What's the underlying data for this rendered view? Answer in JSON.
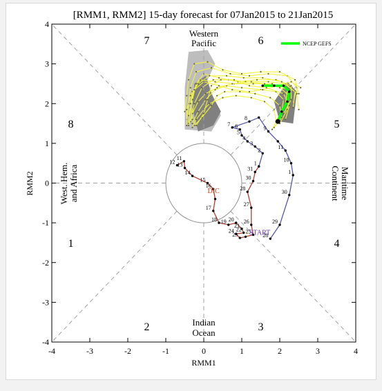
{
  "chart_data": {
    "type": "line",
    "title": "[RMM1, RMM2] 15-day forecast for 07Jan2015 to 21Jan2015",
    "xlabel": "RMM1",
    "ylabel": "RMM2",
    "xlim": [
      -4,
      4
    ],
    "ylim": [
      -4,
      4
    ],
    "xticks": [
      "-4",
      "-3",
      "-2",
      "-1",
      "0",
      "1",
      "2",
      "3",
      "4"
    ],
    "yticks": [
      "-4",
      "-3",
      "-2",
      "-1",
      "0",
      "1",
      "2",
      "3",
      "4"
    ],
    "grid": false,
    "legend_position": "top-right",
    "legend": [
      {
        "name": "NCEP GEFS",
        "color": "#00ff00"
      }
    ],
    "phase_numbers": [
      "1",
      "2",
      "3",
      "4",
      "5",
      "6",
      "7",
      "8"
    ],
    "regions": {
      "western_pacific": [
        "Western",
        "Pacific"
      ],
      "indian_ocean": [
        "Indian",
        "Ocean"
      ],
      "west_hem": [
        "West. Hem.",
        "and Africa"
      ],
      "maritime": [
        "Maritime",
        "Continent"
      ]
    },
    "annotations": {
      "dic": "DIC",
      "start": "START"
    },
    "colors": {
      "observed_dec": "#b04030",
      "observed_jan": "#5555aa",
      "ensemble": "#f2f23a",
      "ensemble_dark": "#666633",
      "spread_light": "#bdbdbd",
      "spread_dark": "#808080",
      "mean": "#00ff00",
      "dic_label": "#cc3300",
      "start_label": "#6633cc"
    },
    "observed_dec": [
      {
        "x": -0.7,
        "y": 0.45,
        "label": "12"
      },
      {
        "x": -0.52,
        "y": 0.55,
        "label": "11"
      },
      {
        "x": -0.5,
        "y": 0.38,
        "label": "13"
      },
      {
        "x": -0.3,
        "y": 0.18,
        "label": "14"
      },
      {
        "x": 0.1,
        "y": 0.0,
        "label": "15"
      },
      {
        "x": 0.25,
        "y": -0.15,
        "label": "16"
      },
      {
        "x": 0.3,
        "y": -0.4,
        "label": ""
      },
      {
        "x": 0.25,
        "y": -0.7,
        "label": "17"
      },
      {
        "x": 0.4,
        "y": -1.0,
        "label": "18"
      },
      {
        "x": 0.65,
        "y": -1.05,
        "label": "19"
      },
      {
        "x": 0.85,
        "y": -1.0,
        "label": "20"
      },
      {
        "x": 1.0,
        "y": -1.15,
        "label": "21"
      },
      {
        "x": 1.05,
        "y": -1.25,
        "label": "22"
      },
      {
        "x": 0.85,
        "y": -1.28,
        "label": "24"
      },
      {
        "x": 0.95,
        "y": -1.38,
        "label": "23"
      },
      {
        "x": 1.1,
        "y": -1.35,
        "label": ""
      },
      {
        "x": 1.3,
        "y": -1.3,
        "label": "25"
      },
      {
        "x": 1.25,
        "y": -1.05,
        "label": "26"
      },
      {
        "x": 1.25,
        "y": -0.62,
        "label": "27"
      },
      {
        "x": 1.15,
        "y": -0.22,
        "label": "28"
      },
      {
        "x": 1.3,
        "y": 0.05,
        "label": "30"
      },
      {
        "x": 1.35,
        "y": 0.28,
        "label": "31"
      },
      {
        "x": 1.45,
        "y": 0.42,
        "label": ""
      }
    ],
    "observed_jan": [
      {
        "x": 1.45,
        "y": 0.42,
        "label": "1"
      },
      {
        "x": 1.55,
        "y": 0.75,
        "label": "2"
      },
      {
        "x": 1.35,
        "y": 0.92,
        "label": "3"
      },
      {
        "x": 1.15,
        "y": 1.05,
        "label": "4"
      },
      {
        "x": 1.0,
        "y": 1.2,
        "label": "5"
      },
      {
        "x": 0.95,
        "y": 1.35,
        "label": "6"
      },
      {
        "x": 0.75,
        "y": 1.4,
        "label": "7"
      },
      {
        "x": 1.2,
        "y": 1.55,
        "label": "8"
      },
      {
        "x": 1.45,
        "y": 1.65,
        "label": ""
      },
      {
        "x": 1.7,
        "y": 1.3,
        "label": "9"
      },
      {
        "x": 1.95,
        "y": 1.05,
        "label": ""
      },
      {
        "x": 2.15,
        "y": 0.82,
        "label": "11"
      },
      {
        "x": 2.3,
        "y": 0.5,
        "label": "10"
      },
      {
        "x": 2.35,
        "y": 0.2,
        "label": "1"
      },
      {
        "x": 2.25,
        "y": -0.3,
        "label": "30"
      },
      {
        "x": 2.0,
        "y": -1.05,
        "label": "29"
      },
      {
        "x": 1.75,
        "y": -1.4,
        "label": "28"
      }
    ],
    "forecast_mean": [
      {
        "x": 1.95,
        "y": 1.55
      },
      {
        "x": 2.05,
        "y": 1.8
      },
      {
        "x": 2.2,
        "y": 2.05
      },
      {
        "x": 2.25,
        "y": 2.3
      },
      {
        "x": 2.1,
        "y": 2.45
      },
      {
        "x": 1.85,
        "y": 2.45
      },
      {
        "x": 1.55,
        "y": 2.45
      }
    ],
    "ensemble_members": [
      [
        {
          "x": -0.4,
          "y": 1.5
        },
        {
          "x": -0.35,
          "y": 1.9
        },
        {
          "x": -0.3,
          "y": 2.3
        },
        {
          "x": -0.1,
          "y": 2.6
        },
        {
          "x": 0.3,
          "y": 2.55
        },
        {
          "x": 0.8,
          "y": 2.5
        },
        {
          "x": 1.3,
          "y": 2.5
        },
        {
          "x": 1.8,
          "y": 2.5
        },
        {
          "x": 2.2,
          "y": 2.35
        },
        {
          "x": 2.15,
          "y": 2.0
        },
        {
          "x": 1.95,
          "y": 1.6
        }
      ],
      [
        {
          "x": -0.4,
          "y": 1.7
        },
        {
          "x": -0.3,
          "y": 2.1
        },
        {
          "x": -0.2,
          "y": 2.5
        },
        {
          "x": 0.0,
          "y": 2.75
        },
        {
          "x": 0.4,
          "y": 2.65
        },
        {
          "x": 0.9,
          "y": 2.55
        },
        {
          "x": 1.4,
          "y": 2.6
        },
        {
          "x": 1.9,
          "y": 2.6
        },
        {
          "x": 2.3,
          "y": 2.45
        },
        {
          "x": 2.3,
          "y": 2.1
        },
        {
          "x": 2.1,
          "y": 1.75
        }
      ],
      [
        {
          "x": -0.3,
          "y": 1.5
        },
        {
          "x": -0.15,
          "y": 1.8
        },
        {
          "x": 0.05,
          "y": 2.1
        },
        {
          "x": 0.3,
          "y": 2.35
        },
        {
          "x": 0.6,
          "y": 2.45
        },
        {
          "x": 1.0,
          "y": 2.4
        },
        {
          "x": 1.5,
          "y": 2.35
        },
        {
          "x": 1.9,
          "y": 2.3
        },
        {
          "x": 2.1,
          "y": 2.1
        },
        {
          "x": 2.05,
          "y": 1.8
        },
        {
          "x": 1.9,
          "y": 1.55
        }
      ],
      [
        {
          "x": -0.45,
          "y": 1.6
        },
        {
          "x": -0.4,
          "y": 2.0
        },
        {
          "x": -0.35,
          "y": 2.4
        },
        {
          "x": -0.2,
          "y": 2.8
        },
        {
          "x": 0.2,
          "y": 2.9
        },
        {
          "x": 0.7,
          "y": 2.75
        },
        {
          "x": 1.2,
          "y": 2.7
        },
        {
          "x": 1.7,
          "y": 2.75
        },
        {
          "x": 2.2,
          "y": 2.7
        },
        {
          "x": 2.45,
          "y": 2.4
        },
        {
          "x": 2.35,
          "y": 2.0
        }
      ],
      [
        {
          "x": -0.25,
          "y": 1.45
        },
        {
          "x": -0.05,
          "y": 1.65
        },
        {
          "x": 0.2,
          "y": 1.95
        },
        {
          "x": 0.35,
          "y": 2.2
        },
        {
          "x": 0.55,
          "y": 2.3
        },
        {
          "x": 0.95,
          "y": 2.3
        },
        {
          "x": 1.35,
          "y": 2.25
        },
        {
          "x": 1.75,
          "y": 2.15
        },
        {
          "x": 2.0,
          "y": 1.95
        },
        {
          "x": 2.05,
          "y": 1.65
        },
        {
          "x": 1.85,
          "y": 1.4
        }
      ],
      [
        {
          "x": -0.5,
          "y": 1.8
        },
        {
          "x": -0.45,
          "y": 2.2
        },
        {
          "x": -0.4,
          "y": 2.6
        },
        {
          "x": -0.25,
          "y": 3.0
        },
        {
          "x": 0.1,
          "y": 3.05
        },
        {
          "x": 0.5,
          "y": 2.85
        },
        {
          "x": 1.0,
          "y": 2.75
        },
        {
          "x": 1.5,
          "y": 2.8
        },
        {
          "x": 2.0,
          "y": 2.8
        },
        {
          "x": 2.4,
          "y": 2.6
        },
        {
          "x": 2.5,
          "y": 2.25
        }
      ],
      [
        {
          "x": -0.35,
          "y": 1.55
        },
        {
          "x": -0.25,
          "y": 2.0
        },
        {
          "x": -0.05,
          "y": 2.4
        },
        {
          "x": 0.25,
          "y": 2.6
        },
        {
          "x": 0.65,
          "y": 2.6
        },
        {
          "x": 1.1,
          "y": 2.55
        },
        {
          "x": 1.6,
          "y": 2.5
        },
        {
          "x": 2.0,
          "y": 2.4
        },
        {
          "x": 2.25,
          "y": 2.2
        },
        {
          "x": 2.2,
          "y": 1.85
        },
        {
          "x": 2.0,
          "y": 1.5
        }
      ],
      [
        {
          "x": -0.3,
          "y": 1.4
        },
        {
          "x": -0.2,
          "y": 1.6
        },
        {
          "x": 0.0,
          "y": 1.85
        },
        {
          "x": 0.15,
          "y": 2.0
        },
        {
          "x": 0.5,
          "y": 2.15
        },
        {
          "x": 0.85,
          "y": 2.2
        },
        {
          "x": 1.25,
          "y": 2.15
        },
        {
          "x": 1.6,
          "y": 2.05
        },
        {
          "x": 1.85,
          "y": 1.85
        },
        {
          "x": 1.9,
          "y": 1.55
        },
        {
          "x": 1.8,
          "y": 1.35
        }
      ],
      [
        {
          "x": -0.45,
          "y": 1.45
        },
        {
          "x": -0.45,
          "y": 1.85
        },
        {
          "x": -0.35,
          "y": 2.2
        },
        {
          "x": -0.15,
          "y": 2.5
        },
        {
          "x": 0.15,
          "y": 2.7
        },
        {
          "x": 0.6,
          "y": 2.7
        },
        {
          "x": 1.05,
          "y": 2.65
        },
        {
          "x": 1.55,
          "y": 2.65
        },
        {
          "x": 2.05,
          "y": 2.55
        },
        {
          "x": 2.4,
          "y": 2.3
        },
        {
          "x": 2.35,
          "y": 1.9
        }
      ],
      [
        {
          "x": -0.2,
          "y": 1.45
        },
        {
          "x": 0.0,
          "y": 1.75
        },
        {
          "x": 0.1,
          "y": 2.1
        },
        {
          "x": 0.2,
          "y": 2.45
        },
        {
          "x": 0.45,
          "y": 2.6
        },
        {
          "x": 0.8,
          "y": 2.6
        },
        {
          "x": 1.2,
          "y": 2.45
        },
        {
          "x": 1.65,
          "y": 2.4
        },
        {
          "x": 2.1,
          "y": 2.25
        },
        {
          "x": 2.25,
          "y": 1.95
        },
        {
          "x": 2.15,
          "y": 1.6
        }
      ],
      [
        {
          "x": -0.4,
          "y": 1.45
        },
        {
          "x": -0.3,
          "y": 1.75
        },
        {
          "x": -0.15,
          "y": 2.05
        },
        {
          "x": 0.05,
          "y": 2.25
        },
        {
          "x": 0.35,
          "y": 2.4
        },
        {
          "x": 0.75,
          "y": 2.5
        },
        {
          "x": 1.25,
          "y": 2.55
        },
        {
          "x": 1.7,
          "y": 2.55
        },
        {
          "x": 2.15,
          "y": 2.5
        },
        {
          "x": 2.45,
          "y": 2.25
        },
        {
          "x": 2.5,
          "y": 1.85
        }
      ],
      [
        {
          "x": -0.3,
          "y": 1.6
        },
        {
          "x": -0.35,
          "y": 2.0
        },
        {
          "x": -0.25,
          "y": 2.35
        },
        {
          "x": 0.0,
          "y": 2.55
        },
        {
          "x": 0.4,
          "y": 2.45
        },
        {
          "x": 0.75,
          "y": 2.35
        },
        {
          "x": 1.2,
          "y": 2.3
        },
        {
          "x": 1.55,
          "y": 2.35
        },
        {
          "x": 1.95,
          "y": 2.45
        },
        {
          "x": 2.3,
          "y": 2.55
        },
        {
          "x": 2.55,
          "y": 2.4
        }
      ]
    ],
    "spread_light": [
      {
        "x": -0.5,
        "y": 1.35
      },
      {
        "x": -0.5,
        "y": 2.4
      },
      {
        "x": -0.4,
        "y": 3.3
      },
      {
        "x": 0.1,
        "y": 3.35
      },
      {
        "x": 0.3,
        "y": 3.0
      },
      {
        "x": 0.1,
        "y": 2.6
      },
      {
        "x": 0.25,
        "y": 2.15
      },
      {
        "x": 0.45,
        "y": 1.7
      },
      {
        "x": 0.2,
        "y": 1.3
      }
    ],
    "spread_dark": [
      {
        "x": -0.15,
        "y": 1.3
      },
      {
        "x": -0.3,
        "y": 1.9
      },
      {
        "x": -0.25,
        "y": 2.5
      },
      {
        "x": 0.05,
        "y": 2.7
      },
      {
        "x": 0.2,
        "y": 2.25
      },
      {
        "x": 0.45,
        "y": 1.8
      },
      {
        "x": 0.25,
        "y": 1.45
      }
    ],
    "spread_dark2": [
      {
        "x": 1.85,
        "y": 2.05
      },
      {
        "x": 2.2,
        "y": 2.55
      },
      {
        "x": 2.45,
        "y": 2.3
      },
      {
        "x": 2.35,
        "y": 1.5
      },
      {
        "x": 2.0,
        "y": 1.55
      }
    ]
  }
}
